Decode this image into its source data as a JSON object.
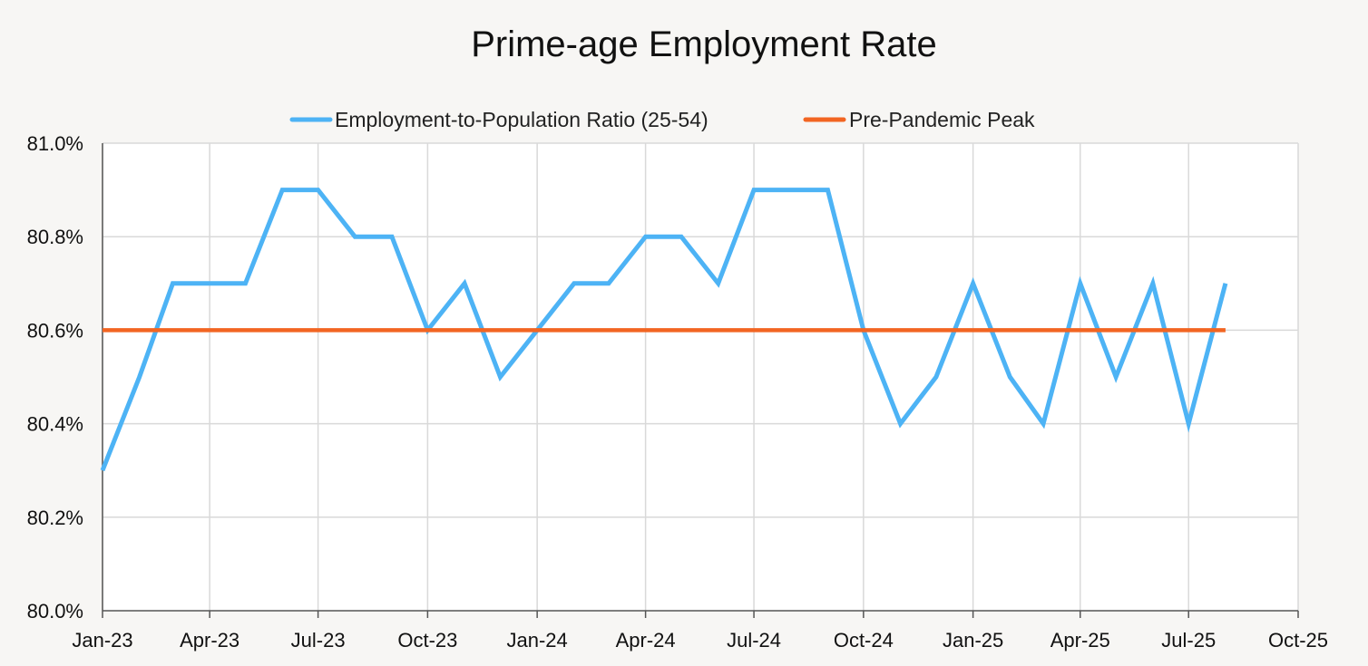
{
  "chart_data": {
    "type": "line",
    "title": "Prime-age Employment Rate",
    "xlabel": "",
    "ylabel": "",
    "ylim": [
      80.0,
      81.0
    ],
    "y_ticks": [
      "81.0%",
      "80.8%",
      "80.6%",
      "80.4%",
      "80.2%",
      "80.0%"
    ],
    "y_tick_values": [
      81.0,
      80.8,
      80.6,
      80.4,
      80.2,
      80.0
    ],
    "x_ticks": [
      "Jan-23",
      "Apr-23",
      "Jul-23",
      "Oct-23",
      "Jan-24",
      "Apr-24",
      "Jul-24",
      "Oct-24",
      "Jan-25",
      "Apr-25",
      "Jul-25",
      "Oct-25"
    ],
    "x_tick_dates": [
      "2023-01-01",
      "2023-04-01",
      "2023-07-01",
      "2023-10-01",
      "2024-01-01",
      "2024-04-01",
      "2024-07-01",
      "2024-10-01",
      "2025-01-01",
      "2025-04-01",
      "2025-07-01",
      "2025-10-01"
    ],
    "legend_position": "top-center",
    "grid": true,
    "series": [
      {
        "name": "Employment-to-Population Ratio (25-54)",
        "color": "#4db3f5",
        "x": [
          "2023-01",
          "2023-02",
          "2023-03",
          "2023-04",
          "2023-05",
          "2023-06",
          "2023-07",
          "2023-08",
          "2023-09",
          "2023-10",
          "2023-11",
          "2023-12",
          "2024-01",
          "2024-02",
          "2024-03",
          "2024-04",
          "2024-05",
          "2024-06",
          "2024-07",
          "2024-08",
          "2024-09",
          "2024-10",
          "2024-11",
          "2024-12",
          "2025-01",
          "2025-02",
          "2025-03",
          "2025-04",
          "2025-05",
          "2025-06",
          "2025-07",
          "2025-08"
        ],
        "values": [
          80.3,
          80.5,
          80.7,
          80.7,
          80.7,
          80.9,
          80.9,
          80.8,
          80.8,
          80.6,
          80.7,
          80.5,
          80.6,
          80.7,
          80.7,
          80.8,
          80.8,
          80.7,
          80.9,
          80.9,
          80.9,
          80.6,
          80.4,
          80.5,
          80.7,
          80.5,
          80.4,
          80.7,
          80.5,
          80.7,
          80.4,
          80.7
        ]
      },
      {
        "name": "Pre-Pandemic Peak",
        "color": "#f26522",
        "x": [
          "2023-01",
          "2025-08"
        ],
        "values": [
          80.6,
          80.6
        ]
      }
    ]
  }
}
